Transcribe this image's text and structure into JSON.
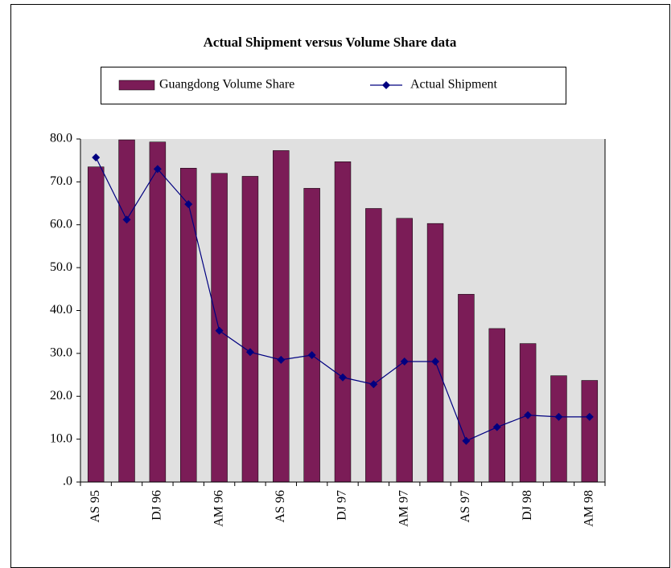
{
  "chart_data": {
    "type": "bar-line",
    "title": "Actual Shipment versus Volume Share data",
    "categories": [
      "AS 95",
      null,
      "DJ 96",
      null,
      "AM 96",
      null,
      "AS 96",
      null,
      "DJ 97",
      null,
      "AM 97",
      null,
      "AS 97",
      null,
      "DJ 98",
      null,
      "AM 98"
    ],
    "series": [
      {
        "name": "Guangdong Volume Share",
        "type": "bar",
        "color": "#7b1c57",
        "values": [
          73.5,
          79.8,
          79.3,
          73.2,
          72.0,
          71.3,
          77.3,
          68.5,
          74.7,
          63.8,
          61.5,
          60.3,
          43.8,
          35.8,
          32.3,
          24.8,
          23.7
        ]
      },
      {
        "name": "Actual Shipment",
        "type": "line",
        "color": "#000080",
        "values": [
          75.7,
          61.2,
          73.0,
          64.8,
          35.3,
          30.3,
          28.5,
          29.6,
          24.4,
          22.8,
          28.1,
          28.1,
          9.6,
          12.8,
          15.6,
          15.2,
          15.2
        ]
      }
    ],
    "ylim": [
      0,
      80
    ],
    "yticks": [
      {
        "value": 0,
        "label": ".0"
      },
      {
        "value": 10,
        "label": "10.0"
      },
      {
        "value": 20,
        "label": "20.0"
      },
      {
        "value": 30,
        "label": "30.0"
      },
      {
        "value": 40,
        "label": "40.0"
      },
      {
        "value": 50,
        "label": "50.0"
      },
      {
        "value": 60,
        "label": "60.0"
      },
      {
        "value": 70,
        "label": "70.0"
      },
      {
        "value": 80,
        "label": "80.0"
      }
    ],
    "legend": "top"
  }
}
